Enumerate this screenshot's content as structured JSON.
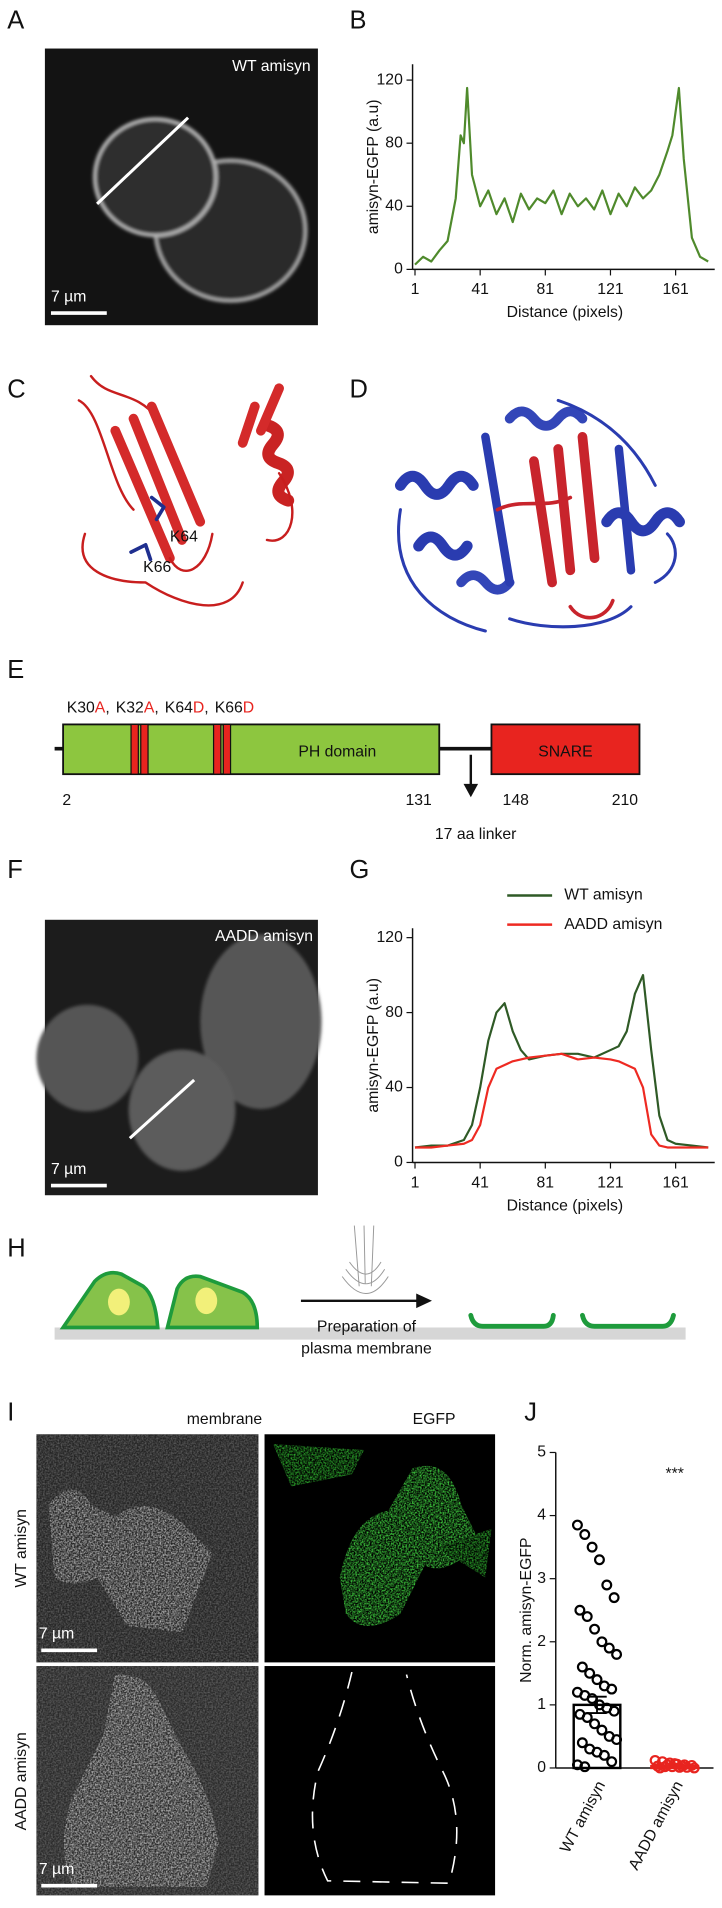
{
  "panel_a": {
    "label": "A",
    "annotation": "WT amisyn",
    "scale_bar": "7 µm"
  },
  "panel_c": {
    "label": "C",
    "residues": [
      "K64",
      "K66"
    ]
  },
  "panel_d": {
    "label": "D"
  },
  "panel_e": {
    "label": "E",
    "mutations": [
      {
        "wt": "K30",
        "to": "A"
      },
      {
        "wt": "K32",
        "to": "A"
      },
      {
        "wt": "K64",
        "to": "D"
      },
      {
        "wt": "K66",
        "to": "D"
      }
    ],
    "separator": ",",
    "domains": [
      "PH domain",
      "SNARE"
    ],
    "positions": [
      2,
      131,
      148,
      210
    ],
    "linker": "17 aa linker"
  },
  "panel_f": {
    "label": "F",
    "annotation": "AADD amisyn",
    "scale_bar": "7 µm"
  },
  "panel_h": {
    "label": "H",
    "caption": [
      "Preparation of",
      "plasma membrane"
    ]
  },
  "panel_i": {
    "label": "I",
    "columns": [
      "membrane",
      "EGFP"
    ],
    "rows": [
      "WT amisyn",
      "AADD amisyn"
    ],
    "scale_bar": "7 µm"
  },
  "chart_data": [
    {
      "type": "line",
      "panel": "B",
      "xlabel": "Distance (pixels)",
      "ylabel": "amisyn-EGFP (a.u)",
      "x": [
        1,
        6,
        11,
        16,
        21,
        26,
        29,
        31,
        33,
        36,
        41,
        46,
        51,
        56,
        61,
        66,
        71,
        76,
        81,
        86,
        91,
        96,
        101,
        106,
        111,
        116,
        121,
        126,
        131,
        136,
        141,
        146,
        151,
        156,
        159,
        161,
        163,
        166,
        171,
        176,
        181
      ],
      "values": [
        3,
        8,
        5,
        12,
        18,
        45,
        85,
        80,
        115,
        60,
        40,
        50,
        35,
        45,
        30,
        48,
        38,
        45,
        42,
        50,
        35,
        48,
        40,
        45,
        38,
        50,
        35,
        48,
        40,
        52,
        45,
        50,
        60,
        75,
        85,
        100,
        115,
        70,
        20,
        8,
        5
      ],
      "color": "#4f8a2c",
      "xlim": [
        1,
        185
      ],
      "ylim": [
        0,
        130
      ],
      "xticks": [
        1,
        41,
        81,
        121,
        161
      ],
      "yticks": [
        0,
        40,
        80,
        120
      ]
    },
    {
      "type": "line",
      "panel": "G",
      "xlabel": "Distance (pixels)",
      "ylabel": "amisyn-EGFP (a.u)",
      "x": [
        1,
        11,
        21,
        31,
        36,
        41,
        46,
        51,
        56,
        61,
        66,
        71,
        81,
        91,
        101,
        111,
        121,
        126,
        131,
        136,
        141,
        146,
        151,
        156,
        161,
        171,
        181
      ],
      "series": [
        {
          "name": "WT amisyn",
          "color": "#2f5a26",
          "values": [
            8,
            9,
            9,
            12,
            20,
            40,
            65,
            80,
            85,
            70,
            60,
            55,
            57,
            58,
            58,
            56,
            60,
            62,
            70,
            90,
            100,
            60,
            25,
            12,
            10,
            9,
            8
          ]
        },
        {
          "name": "AADD amisyn",
          "color": "#ee2a22",
          "values": [
            8,
            8,
            9,
            10,
            12,
            20,
            40,
            50,
            52,
            54,
            55,
            56,
            57,
            58,
            55,
            56,
            55,
            54,
            52,
            50,
            40,
            15,
            9,
            8,
            8,
            8,
            8
          ]
        }
      ],
      "legend": "upper right",
      "xlim": [
        1,
        185
      ],
      "ylim": [
        0,
        125
      ],
      "xticks": [
        1,
        41,
        81,
        121,
        161
      ],
      "yticks": [
        0,
        40,
        80,
        120
      ]
    },
    {
      "type": "bar",
      "panel": "J",
      "ylabel": "Norm. amisyn-EGFP",
      "annotation": "***",
      "categories": [
        "WT amisyn",
        "AADD amisyn"
      ],
      "values": [
        1.0,
        0.03
      ],
      "errors": [
        0.13,
        0.01
      ],
      "colors": [
        "#000000",
        "#e8241f"
      ],
      "points": [
        [
          3.85,
          3.7,
          3.5,
          3.3,
          2.9,
          2.7,
          2.5,
          2.4,
          2.2,
          2.0,
          1.9,
          1.8,
          1.6,
          1.5,
          1.4,
          1.3,
          1.25,
          1.2,
          1.15,
          1.1,
          1.0,
          0.95,
          0.9,
          0.85,
          0.8,
          0.7,
          0.6,
          0.5,
          0.45,
          0.4,
          0.3,
          0.25,
          0.2,
          0.1,
          0.05,
          0.02
        ],
        [
          0.12,
          0.1,
          0.08,
          0.06,
          0.05,
          0.04,
          0.03,
          0.02,
          0.02,
          0.01,
          0.01,
          0,
          0,
          0.05,
          0.07,
          0.03
        ]
      ],
      "ylim": [
        0,
        5
      ],
      "yticks": [
        0,
        1,
        2,
        3,
        4,
        5
      ]
    }
  ]
}
